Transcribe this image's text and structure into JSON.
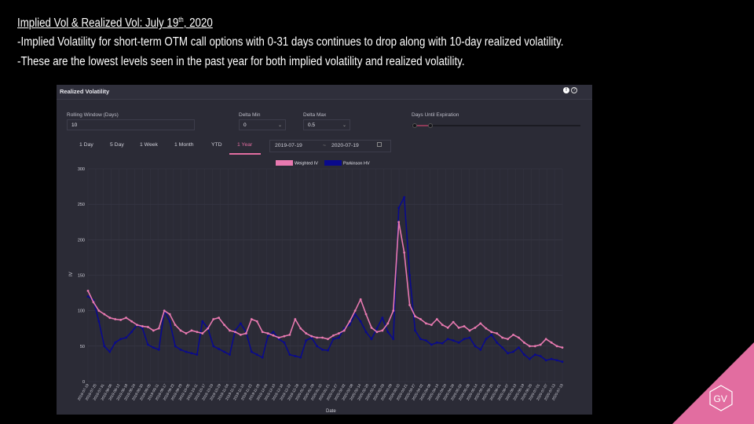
{
  "slide": {
    "title_pre": "Implied Vol & Realized Vol: July 19",
    "title_sup": "th",
    "title_post": ", 2020",
    "bullet1": "-Implied Volatility for short-term OTM call options with 0-31 days continues to drop along with 10-day realized volatility.",
    "bullet2": "-These are the lowest levels seen in the past year for both implied volatility and realized volatility.",
    "logo_text": "GV"
  },
  "panel": {
    "title": "Realized Volatility",
    "icon_info": "info-icon",
    "icon_help": "help-icon",
    "rolling_label": "Rolling Window (Days)",
    "rolling_value": "10",
    "delta_min_label": "Delta Min",
    "delta_min_value": "0",
    "delta_max_label": "Delta Max",
    "delta_max_value": "0.5",
    "days_label": "Days Until Expiration",
    "days_range": [
      0,
      31
    ],
    "tabs": [
      "1 Day",
      "5 Day",
      "1 Week",
      "1 Month",
      "YTD",
      "1 Year"
    ],
    "active_tab": "1 Year",
    "date_start": "2019-07-19",
    "date_sep": "~",
    "date_end": "2020-07-19",
    "calendar_icon": "calendar-icon"
  },
  "colors": {
    "weighted_iv": "#e879b0",
    "parkinson_hv": "#0a0a8c",
    "accent": "#e26da0",
    "panel_bg": "#2b2b36"
  },
  "chart_data": {
    "type": "line",
    "xlabel": "Date",
    "ylabel": "IV",
    "ylim": [
      0,
      300
    ],
    "yticks": [
      0,
      50,
      100,
      150,
      200,
      250,
      300
    ],
    "legend_position": "top-center",
    "grid": true,
    "x_tick_labels": [
      "2019-07-19",
      "2019-07-25",
      "2019-07-31",
      "2019-08-06",
      "2019-08-12",
      "2019-08-18",
      "2019-08-24",
      "2019-08-30",
      "2019-09-05",
      "2019-09-11",
      "2019-09-17",
      "2019-09-23",
      "2019-09-29",
      "2019-10-05",
      "2019-10-11",
      "2019-10-17",
      "2019-10-23",
      "2019-10-29",
      "2019-11-04",
      "2019-11-10",
      "2019-11-16",
      "2019-11-22",
      "2019-11-28",
      "2019-12-04",
      "2019-12-10",
      "2019-12-16",
      "2019-12-22",
      "2019-12-28",
      "2020-01-03",
      "2020-01-09",
      "2020-01-15",
      "2020-01-21",
      "2020-01-27",
      "2020-02-02",
      "2020-02-08",
      "2020-02-14",
      "2020-02-20",
      "2020-02-26",
      "2020-03-03",
      "2020-03-09",
      "2020-03-15",
      "2020-03-21",
      "2020-03-27",
      "2020-04-02",
      "2020-04-08",
      "2020-04-14",
      "2020-04-20",
      "2020-04-26",
      "2020-05-02",
      "2020-05-08",
      "2020-05-14",
      "2020-05-20",
      "2020-05-26",
      "2020-06-01",
      "2020-06-07",
      "2020-06-13",
      "2020-06-19",
      "2020-06-25",
      "2020-07-01",
      "2020-07-07",
      "2020-07-13",
      "2020-07-19"
    ],
    "series": [
      {
        "name": "Weighted IV",
        "values": [
          128,
          112,
          100,
          95,
          90,
          88,
          87,
          90,
          85,
          80,
          78,
          77,
          72,
          75,
          100,
          95,
          80,
          72,
          68,
          72,
          70,
          68,
          75,
          88,
          90,
          80,
          72,
          70,
          66,
          68,
          88,
          85,
          70,
          68,
          65,
          62,
          64,
          66,
          88,
          75,
          68,
          64,
          62,
          62,
          60,
          65,
          68,
          72,
          85,
          100,
          116,
          95,
          76,
          70,
          72,
          82,
          100,
          225,
          182,
          108,
          92,
          88,
          82,
          80,
          88,
          80,
          76,
          84,
          76,
          78,
          72,
          76,
          82,
          75,
          70,
          68,
          62,
          60,
          66,
          62,
          55,
          50,
          50,
          52,
          60,
          55,
          50,
          48
        ]
      },
      {
        "name": "Parkinson HV",
        "values": [
          120,
          115,
          85,
          50,
          42,
          55,
          60,
          62,
          70,
          80,
          75,
          52,
          48,
          45,
          100,
          85,
          50,
          45,
          42,
          40,
          38,
          85,
          75,
          50,
          46,
          42,
          38,
          72,
          82,
          70,
          42,
          38,
          34,
          64,
          70,
          60,
          55,
          38,
          36,
          34,
          58,
          62,
          50,
          45,
          44,
          60,
          62,
          75,
          80,
          95,
          85,
          70,
          60,
          75,
          90,
          70,
          60,
          245,
          260,
          150,
          72,
          60,
          58,
          52,
          55,
          54,
          60,
          58,
          55,
          60,
          62,
          50,
          45,
          60,
          66,
          55,
          48,
          40,
          42,
          48,
          38,
          32,
          38,
          36,
          30,
          32,
          30,
          28
        ]
      }
    ]
  }
}
